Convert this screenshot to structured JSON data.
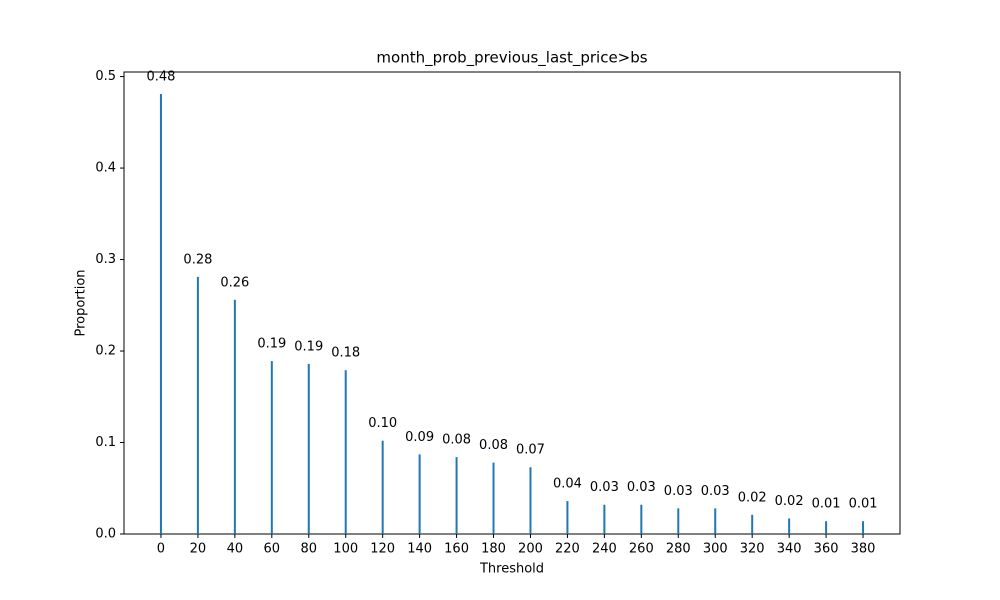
{
  "chart_data": {
    "type": "bar",
    "title": "month_prob_previous_last_price>bs",
    "x_label": "Threshold",
    "y_label": "Proportion",
    "x": [
      0,
      20,
      40,
      60,
      80,
      100,
      120,
      140,
      160,
      180,
      200,
      220,
      240,
      260,
      280,
      300,
      320,
      340,
      360,
      380
    ],
    "values": [
      0.481,
      0.281,
      0.256,
      0.189,
      0.186,
      0.179,
      0.102,
      0.087,
      0.084,
      0.078,
      0.073,
      0.036,
      0.032,
      0.032,
      0.028,
      0.028,
      0.021,
      0.017,
      0.014,
      0.014
    ],
    "value_labels": [
      "0.48",
      "0.28",
      "0.26",
      "0.19",
      "0.19",
      "0.18",
      "0.10",
      "0.09",
      "0.08",
      "0.08",
      "0.07",
      "0.04",
      "0.03",
      "0.03",
      "0.03",
      "0.03",
      "0.02",
      "0.02",
      "0.01",
      "0.01"
    ],
    "color": "#1f77b4",
    "xlim": [
      -20,
      400
    ],
    "xticks": [
      0,
      20,
      40,
      60,
      80,
      100,
      120,
      140,
      160,
      180,
      200,
      220,
      240,
      260,
      280,
      300,
      320,
      340,
      360,
      380
    ],
    "ylim": [
      0,
      0.505
    ],
    "yticks": [
      {
        "value": 0,
        "label": "0.0"
      },
      0.1,
      0.2,
      0.3,
      0.4,
      0.5
    ],
    "grid": false
  }
}
